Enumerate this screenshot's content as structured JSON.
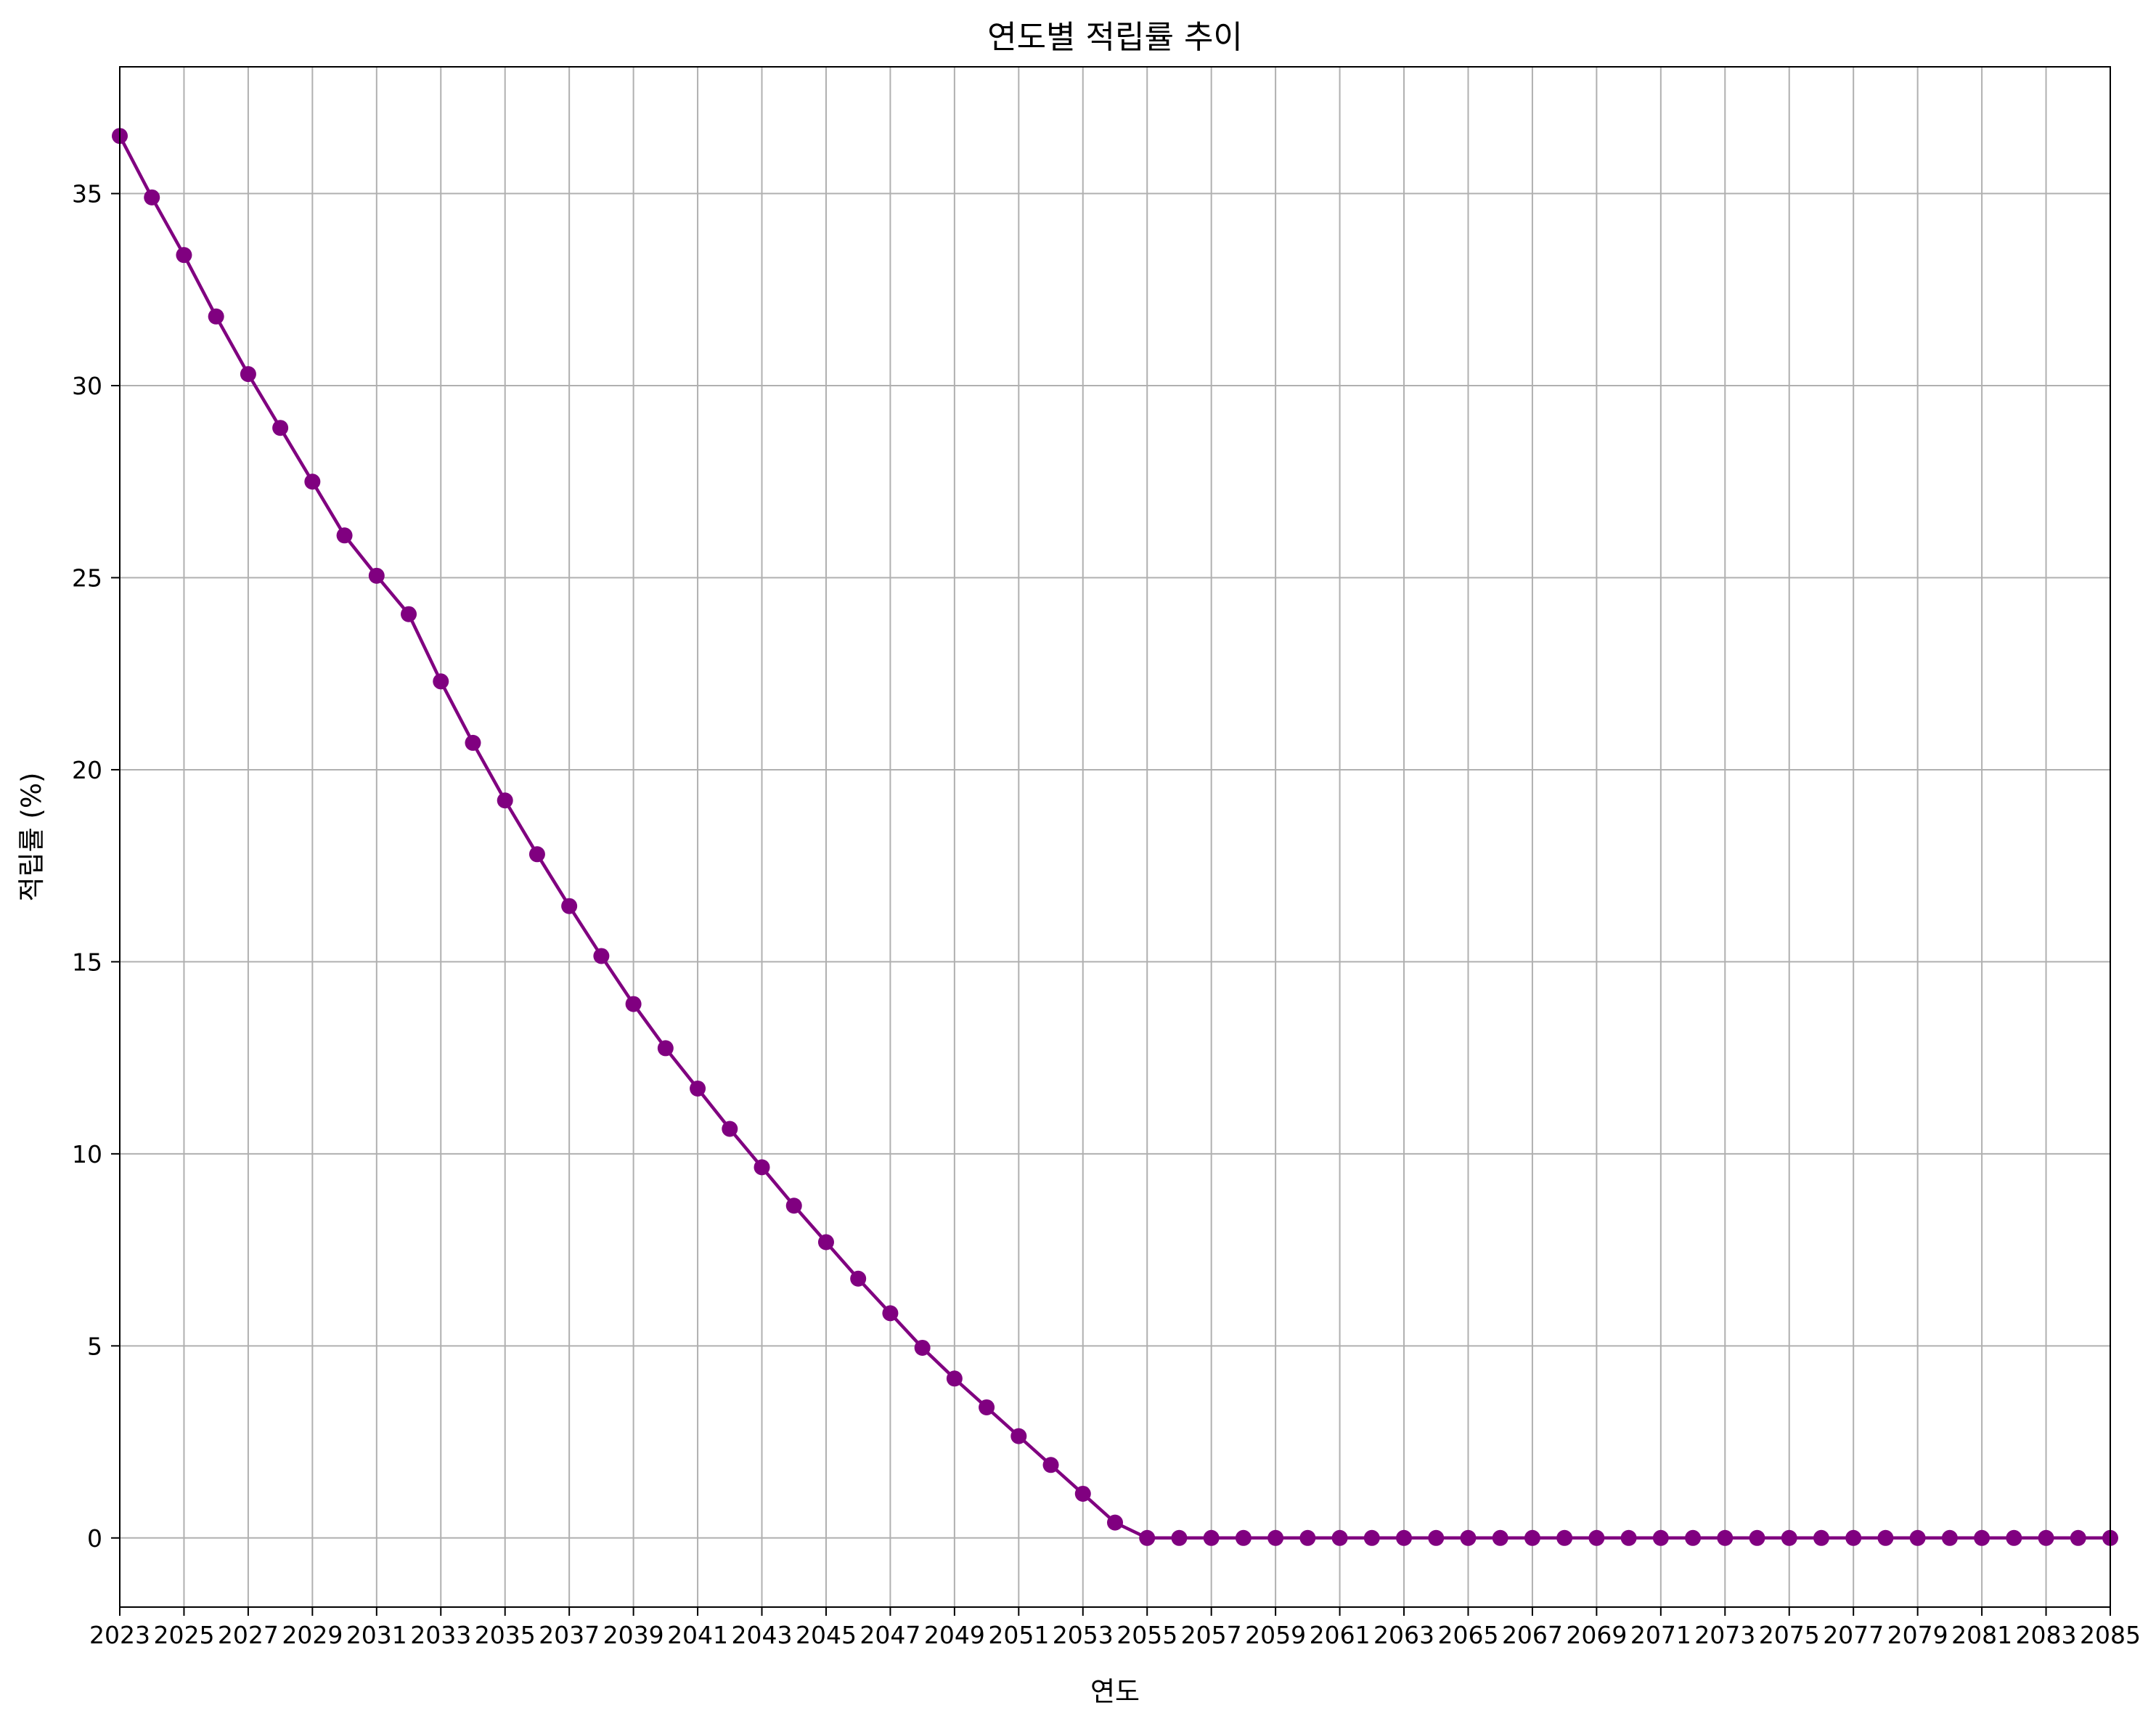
{
  "chart_data": {
    "type": "line",
    "title": "연도별 적립률 추이",
    "xlabel": "연도",
    "ylabel": "적립률 (%)",
    "xlim": [
      2023,
      2085
    ],
    "ylim": [
      -1.8,
      38.3
    ],
    "grid": true,
    "x_ticks": [
      2023,
      2025,
      2027,
      2029,
      2031,
      2033,
      2035,
      2037,
      2039,
      2041,
      2043,
      2045,
      2047,
      2049,
      2051,
      2053,
      2055,
      2057,
      2059,
      2061,
      2063,
      2065,
      2067,
      2069,
      2071,
      2073,
      2075,
      2077,
      2079,
      2081,
      2083,
      2085
    ],
    "y_ticks": [
      0,
      5,
      10,
      15,
      20,
      25,
      30,
      35
    ],
    "series": [
      {
        "color": "#800080",
        "marker": "circle",
        "x": [
          2023,
          2024,
          2025,
          2026,
          2027,
          2028,
          2029,
          2030,
          2031,
          2032,
          2033,
          2034,
          2035,
          2036,
          2037,
          2038,
          2039,
          2040,
          2041,
          2042,
          2043,
          2044,
          2045,
          2046,
          2047,
          2048,
          2049,
          2050,
          2051,
          2052,
          2053,
          2054,
          2055,
          2056,
          2057,
          2058,
          2059,
          2060,
          2061,
          2062,
          2063,
          2064,
          2065,
          2066,
          2067,
          2068,
          2069,
          2070,
          2071,
          2072,
          2073,
          2074,
          2075,
          2076,
          2077,
          2078,
          2079,
          2080,
          2081,
          2082,
          2083,
          2084,
          2085
        ],
        "values": [
          36.5,
          34.9,
          33.4,
          31.8,
          30.3,
          28.9,
          27.5,
          26.1,
          25.05,
          24.05,
          22.3,
          20.7,
          19.2,
          17.8,
          16.45,
          15.15,
          13.9,
          12.75,
          11.7,
          10.65,
          9.65,
          8.65,
          7.7,
          6.75,
          5.85,
          4.95,
          4.15,
          3.4,
          2.65,
          1.9,
          1.15,
          0.4,
          0,
          0,
          0,
          0,
          0,
          0,
          0,
          0,
          0,
          0,
          0,
          0,
          0,
          0,
          0,
          0,
          0,
          0,
          0,
          0,
          0,
          0,
          0,
          0,
          0,
          0,
          0,
          0,
          0,
          0,
          0
        ]
      }
    ]
  }
}
